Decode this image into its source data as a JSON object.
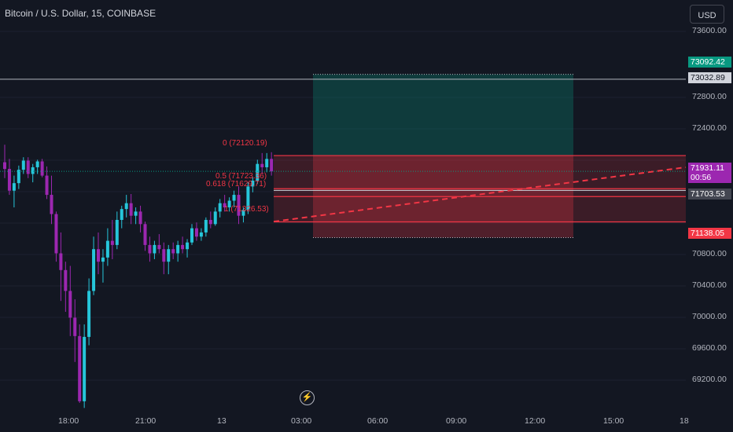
{
  "header": {
    "title": "Bitcoin / U.S. Dollar, 15, COINBASE",
    "currency": "USD"
  },
  "price_axis": {
    "ticks": [
      "73600.00",
      "72800.00",
      "72400.00",
      "70800.00",
      "70400.00",
      "70000.00",
      "69600.00",
      "69200.00"
    ],
    "tags": [
      {
        "value": "73092.42",
        "color": "#089981",
        "kind": "target"
      },
      {
        "value": "73032.89",
        "color": "#d1d4dc",
        "kind": "line"
      },
      {
        "value": "71931.11",
        "time": "00:56",
        "color": "#9c27b0",
        "kind": "last"
      },
      {
        "value": "71703.53",
        "color": "#434651",
        "kind": "level"
      },
      {
        "value": "71138.05",
        "color": "#f23645",
        "kind": "stop"
      }
    ]
  },
  "time_axis": {
    "labels": [
      "18:00",
      "21:00",
      "13",
      "03:00",
      "06:00",
      "09:00",
      "12:00",
      "15:00",
      "18"
    ]
  },
  "fib_labels": [
    "0 (72120.19)",
    "0.5 (71723.36)",
    "0.618 (71629.71)",
    "1 (71326.53)"
  ],
  "chart_data": {
    "type": "candlestick",
    "title": "Bitcoin / U.S. Dollar, 15, COINBASE",
    "price_range": [
      69000,
      73850
    ],
    "candles": [
      [
        72040,
        72250,
        71850,
        71960
      ],
      [
        71960,
        72080,
        71650,
        71700
      ],
      [
        71700,
        71880,
        71500,
        71790
      ],
      [
        71790,
        72000,
        71720,
        71950
      ],
      [
        71950,
        72100,
        71900,
        72060
      ],
      [
        72060,
        72100,
        71850,
        71900
      ],
      [
        71900,
        72020,
        71800,
        71980
      ],
      [
        71980,
        72070,
        71900,
        72050
      ],
      [
        72050,
        72080,
        71860,
        71880
      ],
      [
        71880,
        71990,
        71600,
        71650
      ],
      [
        71650,
        71880,
        71300,
        71420
      ],
      [
        71420,
        71450,
        70850,
        70950
      ],
      [
        70950,
        71200,
        70380,
        70750
      ],
      [
        70750,
        70850,
        70250,
        70500
      ],
      [
        70500,
        70800,
        69960,
        70180
      ],
      [
        70180,
        70400,
        69650,
        69960
      ],
      [
        69960,
        70100,
        69160,
        69180
      ],
      [
        69180,
        70100,
        69100,
        69950
      ],
      [
        69950,
        70650,
        69850,
        70500
      ],
      [
        70500,
        71150,
        70450,
        71000
      ],
      [
        71000,
        71200,
        70700,
        70850
      ],
      [
        70850,
        71000,
        70600,
        70900
      ],
      [
        70900,
        71250,
        70800,
        71100
      ],
      [
        71100,
        71350,
        70880,
        71050
      ],
      [
        71050,
        71450,
        71000,
        71350
      ],
      [
        71350,
        71520,
        71250,
        71480
      ],
      [
        71480,
        71650,
        71380,
        71550
      ],
      [
        71550,
        71660,
        71300,
        71400
      ],
      [
        71400,
        71500,
        71300,
        71450
      ],
      [
        71450,
        71520,
        71200,
        71300
      ],
      [
        71300,
        71330,
        70980,
        71050
      ],
      [
        71050,
        71150,
        70850,
        70950
      ],
      [
        70950,
        71100,
        70880,
        71050
      ],
      [
        71050,
        71180,
        70950,
        71000
      ],
      [
        71000,
        71080,
        70700,
        70850
      ],
      [
        70850,
        71050,
        70700,
        71000
      ],
      [
        71000,
        71080,
        70880,
        70950
      ],
      [
        70950,
        71100,
        70850,
        71050
      ],
      [
        71050,
        71150,
        70950,
        71000
      ],
      [
        71000,
        71120,
        70900,
        71080
      ],
      [
        71080,
        71300,
        71050,
        71250
      ],
      [
        71250,
        71320,
        71100,
        71150
      ],
      [
        71150,
        71250,
        71100,
        71200
      ],
      [
        71200,
        71380,
        71150,
        71350
      ],
      [
        71350,
        71450,
        71250,
        71300
      ],
      [
        71300,
        71500,
        71280,
        71450
      ],
      [
        71450,
        71600,
        71380,
        71550
      ],
      [
        71550,
        71650,
        71450,
        71500
      ],
      [
        71500,
        71620,
        71450,
        71580
      ],
      [
        71580,
        71700,
        71500,
        71650
      ],
      [
        71650,
        71750,
        71300,
        71400
      ],
      [
        71400,
        71500,
        71320,
        71470
      ],
      [
        71470,
        71800,
        71420,
        71750
      ],
      [
        71750,
        71860,
        71680,
        71820
      ],
      [
        71820,
        72070,
        71780,
        72020
      ],
      [
        72020,
        72150,
        71900,
        71980
      ],
      [
        71980,
        72150,
        71920,
        72080
      ],
      [
        72080,
        72160,
        71880,
        71930
      ]
    ],
    "position": {
      "entry": 72120.19,
      "target": 73092.42,
      "stop": 71138.05
    },
    "fib_levels": [
      {
        "level": "0",
        "price": 72120.19
      },
      {
        "level": "0.5",
        "price": 71723.36
      },
      {
        "level": "0.618",
        "price": 71629.71
      },
      {
        "level": "1",
        "price": 71326.53
      }
    ],
    "horizontal_lines": [
      73032.89,
      71931.11,
      71703.53
    ],
    "colors": {
      "up": "#26c6da",
      "down": "#9c27b0",
      "target_zone": "#089981",
      "stop_zone": "#f23645",
      "fib": "#f23645"
    }
  }
}
